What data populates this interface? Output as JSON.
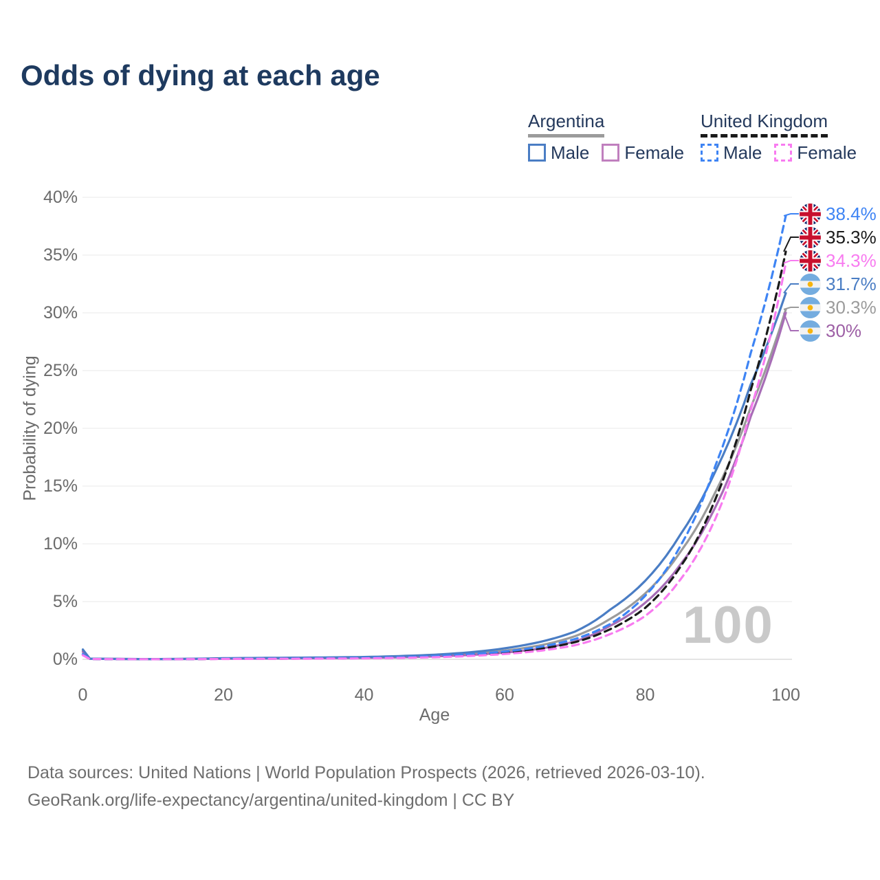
{
  "title": "Odds of dying at each age",
  "watermark": "100",
  "legend": {
    "argentina": {
      "label": "Argentina",
      "male": "Male",
      "female": "Female"
    },
    "united_kingdom": {
      "label": "United Kingdom",
      "male": "Male",
      "female": "Female"
    }
  },
  "axes": {
    "x_label": "Age",
    "y_label": "Probability of dying",
    "y_ticks": [
      {
        "value": 0,
        "label": "0%"
      },
      {
        "value": 5,
        "label": "5%"
      },
      {
        "value": 10,
        "label": "10%"
      },
      {
        "value": 15,
        "label": "15%"
      },
      {
        "value": 20,
        "label": "20%"
      },
      {
        "value": 25,
        "label": "25%"
      },
      {
        "value": 30,
        "label": "30%"
      },
      {
        "value": 35,
        "label": "35%"
      },
      {
        "value": 40,
        "label": "40%"
      }
    ],
    "x_ticks": [
      {
        "value": 0,
        "label": "0"
      },
      {
        "value": 20,
        "label": "20"
      },
      {
        "value": 40,
        "label": "40"
      },
      {
        "value": 60,
        "label": "60"
      },
      {
        "value": 80,
        "label": "80"
      },
      {
        "value": 100,
        "label": "100"
      }
    ]
  },
  "footer": {
    "line1": "Data sources: United Nations | World Population Prospects (2026, retrieved 2026-03-10).",
    "line2": "GeoRank.org/life-expectancy/argentina/united-kingdom | CC BY"
  },
  "colors": {
    "title": "#1e3a5f",
    "legend_text": "#24395c",
    "axis_text": "#6b6b6b",
    "gridline": "#e8e8e8",
    "zero_line": "#dcdcdc",
    "watermark": "#c9c9c9",
    "footer_text": "#6e6e6e",
    "argentina_male": "#4a7dc4",
    "argentina_total": "#9b9b9b",
    "argentina_female": "#a76db6",
    "argentina_female_label": "#9d5fa5",
    "uk_male": "#3e84f4",
    "uk_total": "#1a1a1a",
    "uk_female": "#f87bf0",
    "uk_flag_blue": "#012169",
    "uk_flag_red": "#C8102E",
    "ar_flag_blue": "#74ACDF",
    "ar_flag_sun": "#F6B40E"
  },
  "chart_data": {
    "type": "line",
    "title": "Odds of dying at each age",
    "xlabel": "Age",
    "ylabel": "Probability of dying",
    "xlim": [
      0,
      100
    ],
    "ylim_percent": [
      0,
      40
    ],
    "grid": "horizontal-only",
    "legend_position": "top-right",
    "age_watermark": "100",
    "anchor_ages": [
      0,
      1,
      10,
      20,
      30,
      40,
      45,
      50,
      55,
      60,
      65,
      70,
      75,
      80,
      85,
      90,
      95,
      100
    ],
    "series": [
      {
        "name": "United Kingdom Male",
        "country": "united-kingdom",
        "sex": "male",
        "line_style": "dashed",
        "color_key": "uk_male",
        "label_color_key": "uk_male",
        "flag": "uk",
        "end_label": "38.4%",
        "end_value": 38.4,
        "values_percent": [
          0.45,
          0.03,
          0.01,
          0.05,
          0.08,
          0.12,
          0.18,
          0.28,
          0.44,
          0.68,
          1.08,
          1.75,
          3.05,
          5.5,
          9.8,
          16.8,
          26.5,
          38.4
        ]
      },
      {
        "name": "United Kingdom Both Sexes",
        "country": "united-kingdom",
        "sex": "both",
        "line_style": "dashed",
        "color_key": "uk_total",
        "label_color_key": "uk_total",
        "flag": "uk",
        "end_label": "35.3%",
        "end_value": 35.3,
        "values_percent": [
          0.4,
          0.028,
          0.009,
          0.04,
          0.06,
          0.1,
          0.15,
          0.23,
          0.36,
          0.56,
          0.9,
          1.48,
          2.6,
          4.45,
          8.0,
          13.9,
          23.3,
          35.3
        ]
      },
      {
        "name": "United Kingdom Female",
        "country": "united-kingdom",
        "sex": "female",
        "line_style": "dashed",
        "color_key": "uk_female",
        "label_color_key": "uk_female",
        "flag": "uk",
        "end_label": "34.3%",
        "end_value": 34.3,
        "values_percent": [
          0.35,
          0.025,
          0.008,
          0.03,
          0.05,
          0.08,
          0.12,
          0.18,
          0.29,
          0.46,
          0.74,
          1.22,
          2.18,
          3.75,
          6.9,
          12.2,
          21.6,
          34.3
        ]
      },
      {
        "name": "Argentina Male",
        "country": "argentina",
        "sex": "male",
        "line_style": "solid",
        "color_key": "argentina_male",
        "label_color_key": "argentina_male",
        "flag": "argentina",
        "end_label": "31.7%",
        "end_value": 31.7,
        "values_percent": [
          0.85,
          0.06,
          0.02,
          0.1,
          0.14,
          0.2,
          0.28,
          0.4,
          0.6,
          0.95,
          1.5,
          2.4,
          4.3,
          6.8,
          10.8,
          16.3,
          23.8,
          31.7
        ]
      },
      {
        "name": "Argentina Both Sexes",
        "country": "argentina",
        "sex": "both",
        "line_style": "solid",
        "color_key": "argentina_total",
        "label_color_key": "argentina_total",
        "flag": "argentina",
        "end_label": "30.3%",
        "end_value": 30.3,
        "values_percent": [
          0.75,
          0.05,
          0.018,
          0.08,
          0.11,
          0.16,
          0.22,
          0.32,
          0.48,
          0.75,
          1.2,
          2.0,
          3.5,
          5.7,
          9.3,
          14.5,
          21.8,
          30.3
        ]
      },
      {
        "name": "Argentina Female",
        "country": "argentina",
        "sex": "female",
        "line_style": "solid",
        "color_key": "argentina_female",
        "label_color_key": "argentina_female_label",
        "flag": "argentina",
        "end_label": "30%",
        "end_value": 30.0,
        "values_percent": [
          0.65,
          0.045,
          0.015,
          0.05,
          0.08,
          0.12,
          0.17,
          0.25,
          0.38,
          0.58,
          0.92,
          1.55,
          2.9,
          4.9,
          8.2,
          13.2,
          21.0,
          30.0
        ]
      }
    ]
  }
}
